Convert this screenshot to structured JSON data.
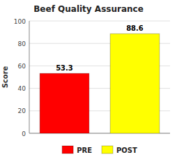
{
  "chart_data": {
    "type": "bar",
    "title": "Beef Quality Assurance",
    "categories": [
      "PRE",
      "POST"
    ],
    "values": [
      53.3,
      88.6
    ],
    "colors": [
      "#ff0000",
      "#ffff00"
    ],
    "ylabel": "Score",
    "ylim": [
      0,
      100
    ],
    "yticks": [
      0,
      20,
      40,
      60,
      80,
      100
    ],
    "grid": true,
    "data_labels": true,
    "legend": "bottom",
    "tick_labels": "y"
  }
}
